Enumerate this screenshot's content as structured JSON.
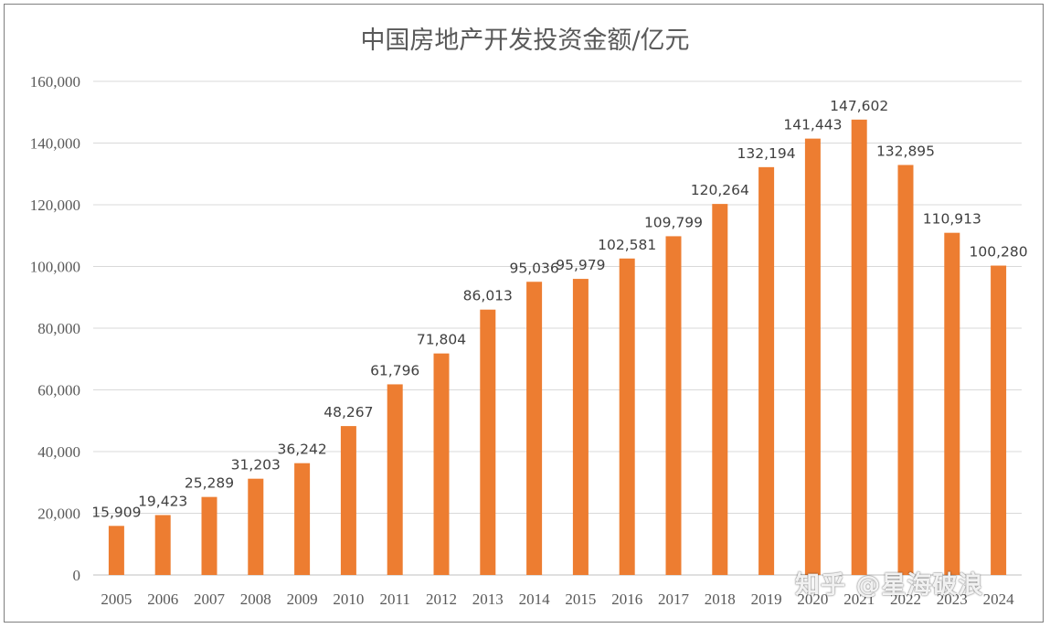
{
  "chart_data": {
    "type": "bar",
    "title": "中国房地产开发投资金额/亿元",
    "categories": [
      "2005",
      "2006",
      "2007",
      "2008",
      "2009",
      "2010",
      "2011",
      "2012",
      "2013",
      "2014",
      "2015",
      "2016",
      "2017",
      "2018",
      "2019",
      "2020",
      "2021",
      "2022",
      "2023",
      "2024"
    ],
    "values": [
      15909,
      19423,
      25289,
      31203,
      36242,
      48267,
      61796,
      71804,
      86013,
      95036,
      95979,
      102581,
      109799,
      120264,
      132194,
      141443,
      147602,
      132895,
      110913,
      100280
    ],
    "data_labels": [
      "15,909",
      "19,423",
      "25,289",
      "31,203",
      "36,242",
      "48,267",
      "61,796",
      "71,804",
      "86,013",
      "95,036",
      "95,979",
      "102,581",
      "109,799",
      "120,264",
      "132,194",
      "141,443",
      "147,602",
      "132,895",
      "110,913",
      "100,280"
    ],
    "ylim": [
      0,
      160000
    ],
    "yticks": [
      0,
      20000,
      40000,
      60000,
      80000,
      100000,
      120000,
      140000,
      160000
    ],
    "ytick_labels": [
      "0",
      "20,000",
      "40,000",
      "60,000",
      "80,000",
      "100,000",
      "120,000",
      "140,000",
      "160,000"
    ],
    "grid": true,
    "bar_color": "#ED7D31",
    "legend": "none"
  },
  "watermark": "知乎 @星海破浪"
}
